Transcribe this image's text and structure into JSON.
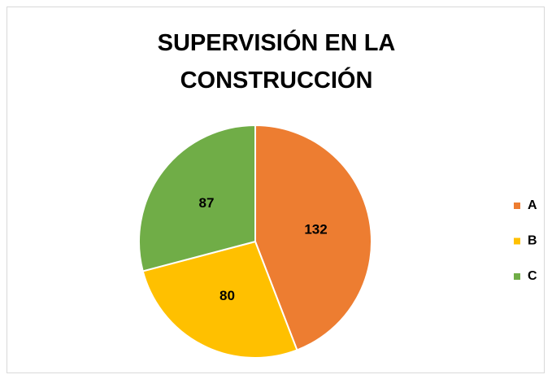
{
  "chart_data": {
    "type": "pie",
    "title": "SUPERVISIÓN EN LA CONSTRUCCIÓN",
    "categories": [
      "A",
      "B",
      "C"
    ],
    "values": [
      132,
      80,
      87
    ],
    "colors": [
      "#ED7D31",
      "#FFC000",
      "#70AD47"
    ],
    "legend": "right"
  }
}
